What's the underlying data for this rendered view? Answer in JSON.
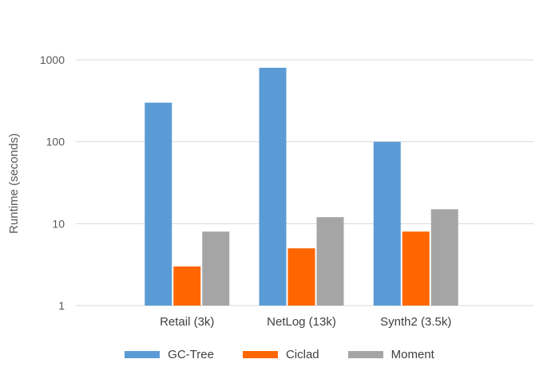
{
  "chart_data": {
    "type": "bar",
    "title": "",
    "xlabel": "",
    "ylabel": "Runtime (seconds)",
    "yscale": "log",
    "ylim": [
      1,
      1000
    ],
    "yticks": [
      "1",
      "10",
      "100",
      "1000"
    ],
    "grid": true,
    "legend_position": "bottom",
    "categories": [
      "Retail (3k)",
      "NetLog (13k)",
      "Synth2 (3.5k)"
    ],
    "series": [
      {
        "name": "GC-Tree",
        "color": "#5B9BD5",
        "values": [
          300,
          800,
          100
        ]
      },
      {
        "name": "Ciclad",
        "color": "#FF6600",
        "values": [
          3,
          5,
          8
        ]
      },
      {
        "name": "Moment",
        "color": "#A5A5A5",
        "values": [
          8,
          12,
          15
        ]
      }
    ]
  }
}
